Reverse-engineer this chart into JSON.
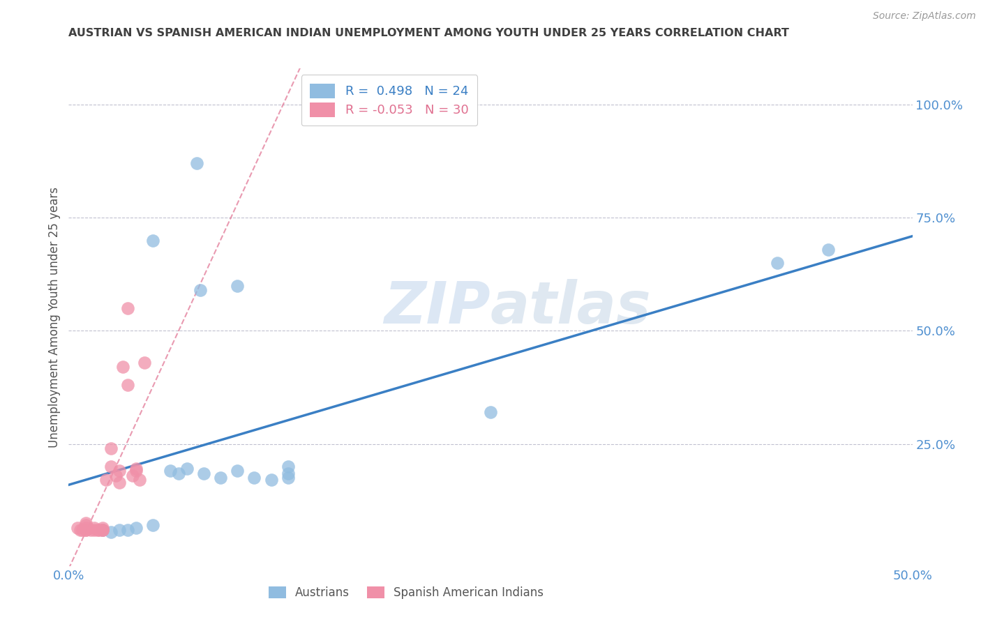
{
  "title": "AUSTRIAN VS SPANISH AMERICAN INDIAN UNEMPLOYMENT AMONG YOUTH UNDER 25 YEARS CORRELATION CHART",
  "source": "Source: ZipAtlas.com",
  "ylabel": "Unemployment Among Youth under 25 years",
  "xlim": [
    0.0,
    0.5
  ],
  "ylim": [
    -0.02,
    1.08
  ],
  "watermark_line1": "ZIP",
  "watermark_line2": "atlas",
  "legend_austrians_R": 0.498,
  "legend_austrians_N": 24,
  "legend_spanish_R": -0.053,
  "legend_spanish_N": 30,
  "austrians_x": [
    0.076,
    0.05,
    0.078,
    0.1,
    0.13,
    0.13,
    0.13,
    0.02,
    0.025,
    0.03,
    0.035,
    0.04,
    0.05,
    0.06,
    0.065,
    0.07,
    0.08,
    0.09,
    0.1,
    0.11,
    0.12,
    0.25,
    0.42,
    0.45
  ],
  "austrians_y": [
    0.87,
    0.7,
    0.59,
    0.6,
    0.2,
    0.185,
    0.175,
    0.06,
    0.055,
    0.06,
    0.06,
    0.065,
    0.07,
    0.19,
    0.185,
    0.195,
    0.185,
    0.175,
    0.19,
    0.175,
    0.17,
    0.32,
    0.65,
    0.68
  ],
  "spanish_x": [
    0.005,
    0.007,
    0.008,
    0.01,
    0.01,
    0.01,
    0.01,
    0.01,
    0.013,
    0.015,
    0.015,
    0.017,
    0.018,
    0.02,
    0.02,
    0.02,
    0.022,
    0.025,
    0.025,
    0.028,
    0.03,
    0.03,
    0.032,
    0.035,
    0.035,
    0.038,
    0.04,
    0.04,
    0.042,
    0.045
  ],
  "spanish_y": [
    0.065,
    0.06,
    0.06,
    0.06,
    0.06,
    0.065,
    0.07,
    0.075,
    0.06,
    0.06,
    0.065,
    0.06,
    0.06,
    0.06,
    0.06,
    0.065,
    0.17,
    0.2,
    0.24,
    0.18,
    0.165,
    0.19,
    0.42,
    0.38,
    0.55,
    0.18,
    0.19,
    0.195,
    0.17,
    0.43
  ],
  "austrians_color": "#90bce0",
  "spanish_color": "#f090a8",
  "regression_color_austrians": "#3a7fc4",
  "regression_color_spanish": "#e07090",
  "background_color": "#ffffff",
  "grid_color": "#c0c0d0",
  "title_color": "#404040",
  "axis_color": "#5090d0",
  "legend_blue_color": "#90bce0",
  "legend_pink_color": "#f090a8",
  "legend_R_color_blue": "#3a7fc4",
  "legend_R_color_pink": "#e07090"
}
